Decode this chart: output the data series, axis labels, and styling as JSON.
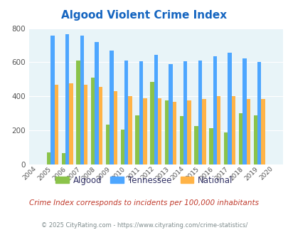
{
  "title": "Algood Violent Crime Index",
  "subtitle": "Crime Index corresponds to incidents per 100,000 inhabitants",
  "footer": "© 2025 CityRating.com - https://www.cityrating.com/crime-statistics/",
  "years": [
    2004,
    2005,
    2006,
    2007,
    2008,
    2009,
    2010,
    2011,
    2012,
    2013,
    2014,
    2015,
    2016,
    2017,
    2018,
    2019,
    2020
  ],
  "algood": [
    0,
    70,
    65,
    610,
    510,
    235,
    205,
    290,
    485,
    375,
    285,
    225,
    215,
    190,
    300,
    290,
    0
  ],
  "tennessee": [
    0,
    755,
    765,
    755,
    720,
    670,
    612,
    608,
    645,
    588,
    608,
    612,
    636,
    655,
    623,
    600,
    0
  ],
  "national": [
    0,
    468,
    475,
    468,
    456,
    430,
    403,
    390,
    390,
    368,
    376,
    383,
    400,
    400,
    385,
    385,
    0
  ],
  "bar_width": 0.26,
  "ylim": [
    0,
    800
  ],
  "yticks": [
    0,
    200,
    400,
    600,
    800
  ],
  "algood_color": "#8bc34a",
  "tennessee_color": "#4da6ff",
  "national_color": "#ffb347",
  "bg_color": "#e8f4f8",
  "title_color": "#1565c0",
  "subtitle_color": "#c0392b",
  "footer_color": "#7f8c8d",
  "legend_label_color": "#333366",
  "legend_labels": [
    "Algood",
    "Tennessee",
    "National"
  ]
}
